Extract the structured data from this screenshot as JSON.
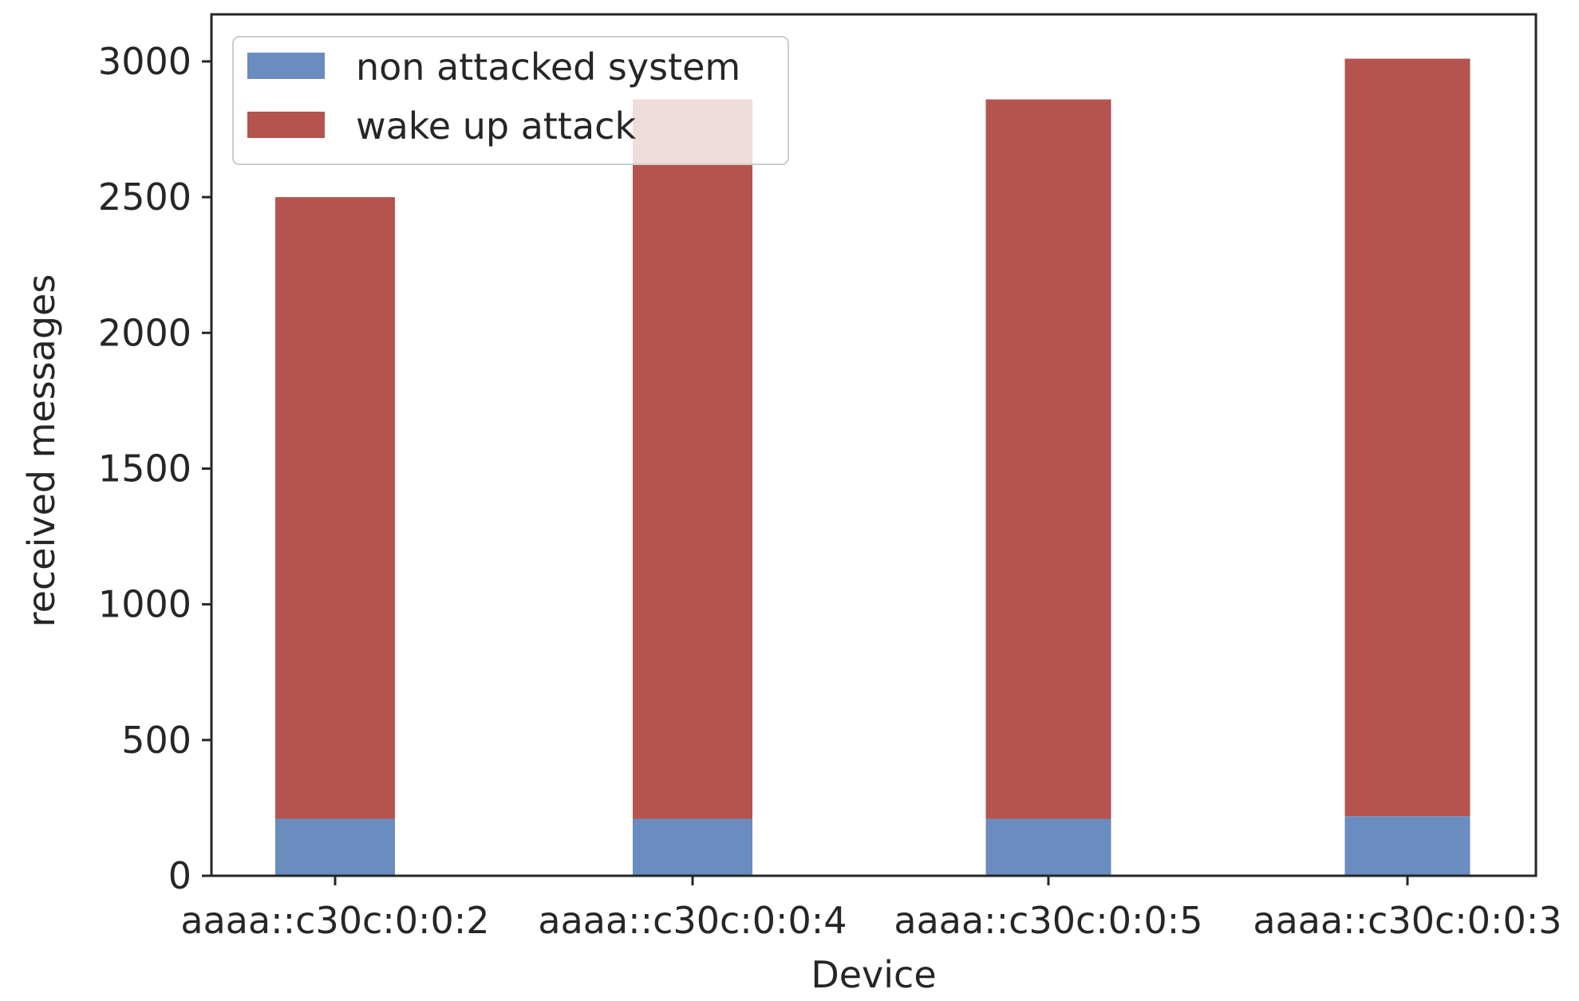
{
  "chart_data": {
    "type": "bar",
    "stacked": true,
    "title": "",
    "xlabel": "Device",
    "ylabel": "received messages",
    "categories": [
      "aaaa::c30c:0:0:2",
      "aaaa::c30c:0:0:4",
      "aaaa::c30c:0:0:5",
      "aaaa::c30c:0:0:3"
    ],
    "series": [
      {
        "name": "non attacked system",
        "color": "#6a8cbf",
        "values": [
          210,
          210,
          210,
          220
        ]
      },
      {
        "name": "wake up attack",
        "color": "#b5534e",
        "values": [
          2290,
          2650,
          2650,
          2790
        ]
      }
    ],
    "ylim": [
      0,
      3150
    ],
    "yticks": [
      0,
      500,
      1000,
      1500,
      2000,
      2500,
      3000
    ],
    "grid": false,
    "legend": "top-left"
  }
}
